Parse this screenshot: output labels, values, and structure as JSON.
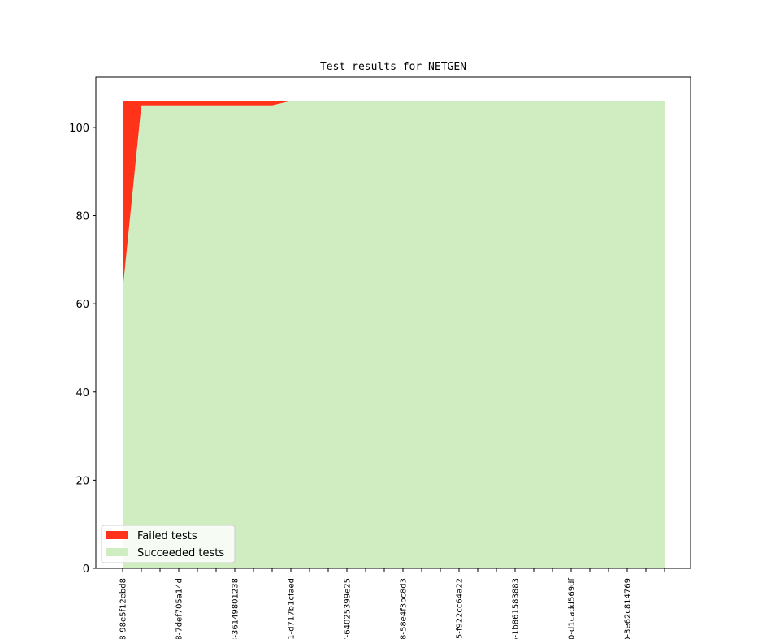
{
  "chart_data": {
    "type": "stacked_area",
    "title": "Test results for NETGEN",
    "categories": [
      "8-98e5f12ebd8",
      null,
      null,
      "8-7def705a14d",
      null,
      null,
      "3-36149801238",
      null,
      null,
      "1-d717b1cfaed",
      null,
      null,
      "7-64025399e25",
      null,
      null,
      "8-58e4f3bc8d3",
      null,
      null,
      "5-f922cc64a22",
      null,
      null,
      "6-1b861583883",
      null,
      null,
      "0-d1cadd569df",
      null,
      null,
      "0-3e62c814769",
      null,
      null
    ],
    "series": [
      {
        "name": "Failed tests",
        "color": "#ff3319",
        "values": [
          43,
          1,
          1,
          1,
          1,
          1,
          1,
          1,
          1,
          0,
          0,
          0,
          0,
          0,
          0,
          0,
          0,
          0,
          0,
          0,
          0,
          0,
          0,
          0,
          0,
          0,
          0,
          0,
          0,
          0
        ]
      },
      {
        "name": "Succeeded tests",
        "color": "#cfedc0",
        "values": [
          63,
          105,
          105,
          105,
          105,
          105,
          105,
          105,
          105,
          106,
          106,
          106,
          106,
          106,
          106,
          106,
          106,
          106,
          106,
          106,
          106,
          106,
          106,
          106,
          106,
          106,
          106,
          106,
          106,
          106
        ]
      }
    ],
    "ylim": [
      0,
      111.4
    ],
    "yticks": [
      0,
      20,
      40,
      60,
      80,
      100
    ],
    "legend": "lower left"
  }
}
